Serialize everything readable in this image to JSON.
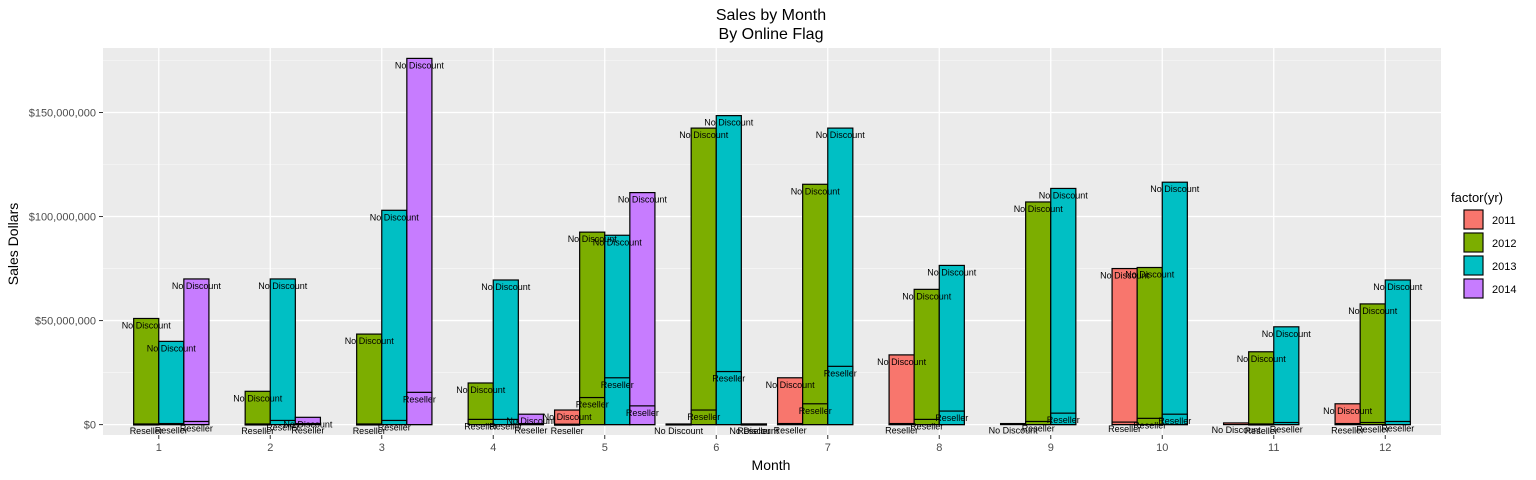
{
  "chart_data": {
    "type": "bar",
    "title": "Sales by Month",
    "subtitle": "By Online Flag",
    "xlabel": "Month",
    "ylabel": "Sales Dollars",
    "ylim": [
      -5000000,
      181000000
    ],
    "y_ticks": [
      0,
      50000000,
      100000000,
      150000000
    ],
    "y_tick_labels": [
      "$0",
      "$50,000,000",
      "$100,000,000",
      "$150,000,000"
    ],
    "categories": [
      "1",
      "2",
      "3",
      "4",
      "5",
      "6",
      "7",
      "8",
      "9",
      "10",
      "11",
      "12"
    ],
    "legend": {
      "title": "factor(yr)",
      "placement": "right"
    },
    "grid": true,
    "panel_color": "#ebebeb",
    "series": [
      {
        "name": "2011",
        "color": "#F8766D",
        "reseller": [
          null,
          null,
          null,
          null,
          200000,
          null,
          500000,
          500000,
          null,
          1200000,
          null,
          500000
        ],
        "no_discount": [
          null,
          null,
          null,
          null,
          7000000,
          300000,
          22500000,
          33500000,
          500000,
          75000000,
          800000,
          10000000
        ]
      },
      {
        "name": "2012",
        "color": "#7CAE00",
        "reseller": [
          300000,
          300000,
          300000,
          2500000,
          13000000,
          7000000,
          10000000,
          2500000,
          1500000,
          3000000,
          300000,
          1000000
        ],
        "no_discount": [
          51000000,
          16000000,
          43500000,
          20000000,
          92500000,
          142500000,
          115500000,
          65000000,
          107000000,
          75500000,
          35000000,
          58000000
        ]
      },
      {
        "name": "2013",
        "color": "#00BFC4",
        "reseller": [
          500000,
          2000000,
          2000000,
          2500000,
          22500000,
          25500000,
          28000000,
          6500000,
          5500000,
          5000000,
          1000000,
          1500000
        ],
        "no_discount": [
          40000000,
          70000000,
          103000000,
          69500000,
          91000000,
          148500000,
          142500000,
          76500000,
          113500000,
          116500000,
          47000000,
          69500000
        ]
      },
      {
        "name": "2014",
        "color": "#C77CFF",
        "reseller": [
          1500000,
          500000,
          15500000,
          500000,
          9000000,
          300000,
          null,
          null,
          null,
          null,
          null,
          null
        ],
        "no_discount": [
          70000000,
          3500000,
          176000000,
          5000000,
          111500000,
          300000,
          null,
          null,
          null,
          null,
          null,
          null
        ]
      }
    ],
    "bar_label_reseller": "Reseller",
    "bar_label_no_discount": "No Discount"
  }
}
